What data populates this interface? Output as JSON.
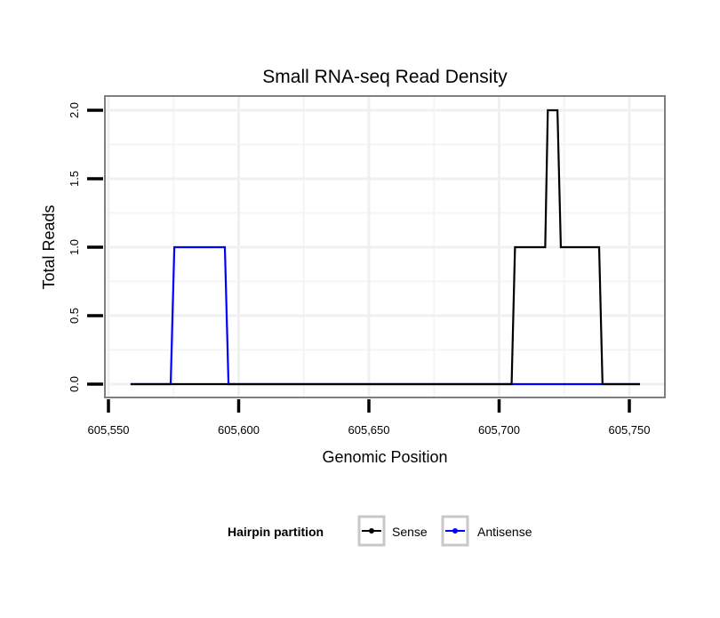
{
  "chart_data": {
    "type": "line",
    "title": "Small RNA-seq Read Density",
    "xlabel": "Genomic Position",
    "ylabel": "Total Reads",
    "xlim": [
      605548,
      605763
    ],
    "ylim": [
      -0.1,
      2.1
    ],
    "x_ticks": [
      605550,
      605600,
      605650,
      605700,
      605750
    ],
    "x_tick_labels": [
      "605,550",
      "605,600",
      "605,650",
      "605,700",
      "605,750"
    ],
    "y_ticks": [
      0,
      0.5,
      1,
      1.5,
      2
    ],
    "y_tick_labels": [
      "0.0",
      "0.5",
      "1.0",
      "1.5",
      "2.0"
    ],
    "grid": true,
    "legend": {
      "title": "Hairpin partition",
      "placement": "bottom"
    },
    "series": [
      {
        "name": "Antisense",
        "color": "#0000ff",
        "x": [
          605558.5,
          605573.9,
          605575.3,
          605594.7,
          605596.1,
          605754.1
        ],
        "y": [
          0,
          0,
          1,
          1,
          0,
          0
        ]
      },
      {
        "name": "Sense",
        "color": "#000000",
        "x": [
          605558.5,
          605704.8,
          605706.1,
          605717.7,
          605718.7,
          605722.4,
          605723.7,
          605738.4,
          605739.7,
          605754.1
        ],
        "y": [
          0,
          0,
          1,
          1,
          2,
          2,
          1,
          1,
          0,
          0
        ]
      }
    ]
  }
}
